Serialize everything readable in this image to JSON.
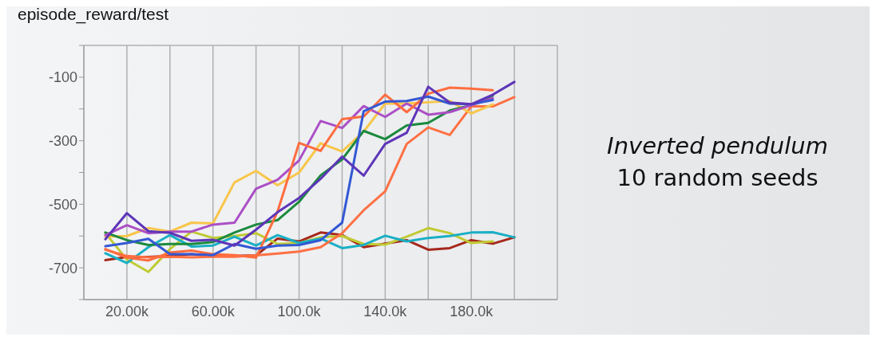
{
  "chart_data": {
    "type": "line",
    "title": "episode_reward/test",
    "annotations": [
      "Inverted pendulum",
      "10 random seeds"
    ],
    "x": [
      10000,
      20000,
      30000,
      40000,
      50000,
      60000,
      70000,
      80000,
      90000,
      100000,
      110000,
      120000,
      130000,
      140000,
      150000,
      160000,
      170000,
      180000,
      190000,
      200000
    ],
    "xlim": [
      0,
      220000
    ],
    "xticks": [
      {
        "value": 0,
        "label": null
      },
      {
        "value": 20000,
        "label": "20.00k"
      },
      {
        "value": 40000,
        "label": null
      },
      {
        "value": 60000,
        "label": "60.00k"
      },
      {
        "value": 80000,
        "label": null
      },
      {
        "value": 100000,
        "label": "100.0k"
      },
      {
        "value": 120000,
        "label": null
      },
      {
        "value": 140000,
        "label": "140.0k"
      },
      {
        "value": 160000,
        "label": null
      },
      {
        "value": 180000,
        "label": "180.0k"
      },
      {
        "value": 200000,
        "label": null
      },
      {
        "value": 220000,
        "label": null
      }
    ],
    "ylim": [
      -800,
      0
    ],
    "yticks": [
      {
        "value": -800,
        "label": null
      },
      -700,
      {
        "value": -600,
        "label": null
      },
      -500,
      {
        "value": -400,
        "label": null
      },
      -300,
      {
        "value": -200,
        "label": null
      },
      -100,
      {
        "value": 0,
        "label": null
      }
    ],
    "grid": true,
    "marker": "none",
    "line_style": "solid",
    "series": [
      {
        "color": "#a5281b",
        "values": [
          -676,
          -666,
          -666,
          -663,
          -657,
          -663,
          -663,
          -661,
          -608,
          -617,
          -589,
          -597,
          -635,
          -624,
          -613,
          -643,
          -638,
          -613,
          -624,
          -604
        ]
      },
      {
        "color": "#c0ca33",
        "values": [
          -591,
          -674,
          -713,
          -641,
          -586,
          -606,
          -600,
          -591,
          -625,
          -622,
          -604,
          -600,
          -625,
          -627,
          -602,
          -575,
          -591,
          -622,
          -617,
          null
        ]
      },
      {
        "color": "#1aafc4",
        "values": [
          -654,
          -685,
          -635,
          -597,
          -633,
          -630,
          -602,
          -630,
          -597,
          -622,
          -608,
          -638,
          -628,
          -599,
          -617,
          -606,
          -600,
          -589,
          -588,
          -604
        ]
      },
      {
        "color": "#ff7043",
        "values": [
          -643,
          -663,
          -667,
          -665,
          -667,
          -665,
          -665,
          -661,
          -655,
          -649,
          -635,
          -591,
          -519,
          -459,
          -310,
          -258,
          -282,
          -192,
          -192,
          -163
        ]
      },
      {
        "color": "#f8c64a",
        "values": [
          -602,
          -600,
          -575,
          -586,
          -558,
          -560,
          -431,
          -395,
          -440,
          -400,
          -308,
          -334,
          -271,
          -183,
          -183,
          -179,
          -175,
          -214,
          -186,
          null
        ]
      },
      {
        "color": "#1b8a3e",
        "values": [
          -589,
          -613,
          -628,
          -625,
          -625,
          -619,
          -589,
          -564,
          -550,
          -492,
          -409,
          -359,
          -269,
          -295,
          -252,
          -244,
          -205,
          -188,
          -158,
          null
        ]
      },
      {
        "color": "#ab4fc6",
        "values": [
          -597,
          -566,
          -591,
          -586,
          -586,
          -564,
          -558,
          -451,
          -423,
          -362,
          -238,
          -260,
          -191,
          -225,
          -183,
          -218,
          -210,
          -188,
          -166,
          null
        ]
      },
      {
        "color": "#ff6d3f",
        "values": [
          -641,
          -668,
          -677,
          -652,
          -646,
          -657,
          -660,
          -668,
          -523,
          -307,
          -332,
          -232,
          -224,
          -155,
          -210,
          -152,
          -133,
          -136,
          -141,
          null
        ]
      },
      {
        "color": "#3358d4",
        "values": [
          -632,
          -622,
          -609,
          -657,
          -657,
          -660,
          -625,
          -640,
          -630,
          -628,
          -613,
          -558,
          -207,
          -177,
          -175,
          -161,
          -183,
          -185,
          -172,
          null
        ]
      },
      {
        "color": "#5e35b8",
        "values": [
          -610,
          -528,
          -585,
          -590,
          -615,
          -612,
          -630,
          -580,
          -525,
          -480,
          -420,
          -350,
          -410,
          -310,
          -275,
          -130,
          -180,
          -185,
          -155,
          -115
        ]
      }
    ]
  }
}
